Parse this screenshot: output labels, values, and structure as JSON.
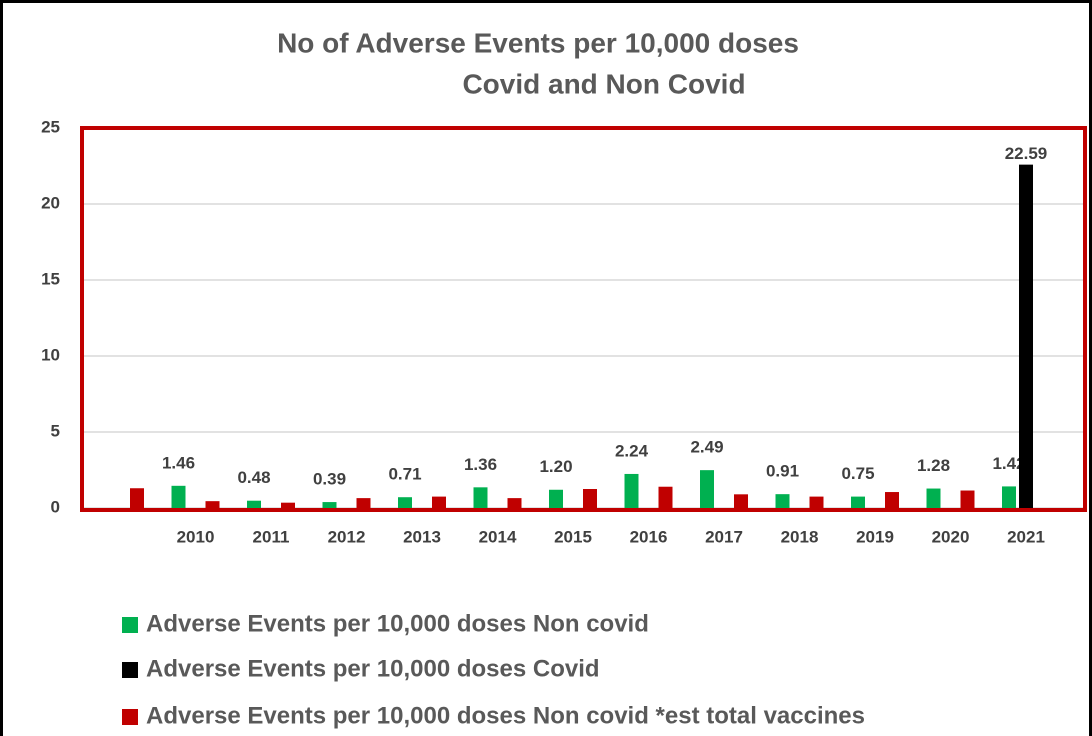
{
  "chart_data": {
    "type": "bar",
    "title": [
      "No of Adverse Events per 10,000 doses",
      "Covid and Non Covid"
    ],
    "categories": [
      null,
      "2010",
      "2011",
      "2012",
      "2013",
      "2014",
      "2015",
      "2016",
      "2017",
      "2018",
      "2019",
      "2020",
      "2021"
    ],
    "series": [
      {
        "name": "Adverse Events per 10,000 doses Non covid",
        "color": "#00b050",
        "values": [
          null,
          1.46,
          0.48,
          0.39,
          0.71,
          1.36,
          1.2,
          2.24,
          2.49,
          0.91,
          0.75,
          1.28,
          1.42
        ],
        "value_labels": [
          null,
          "1.46",
          "0.48",
          "0.39",
          "0.71",
          "1.36",
          "1.20",
          "2.24",
          "2.49",
          "0.91",
          "0.75",
          "1.28",
          "1.42"
        ]
      },
      {
        "name": "Adverse Events per 10,000 doses Covid",
        "color": "#000000",
        "values": [
          null,
          null,
          null,
          null,
          null,
          null,
          null,
          null,
          null,
          null,
          null,
          null,
          22.59
        ],
        "value_labels": [
          null,
          null,
          null,
          null,
          null,
          null,
          null,
          null,
          null,
          null,
          null,
          null,
          "22.59"
        ]
      },
      {
        "name": "Adverse Events per 10,000 doses Non covid *est total vaccines",
        "color": "#c00000",
        "values": [
          1.3,
          0.45,
          0.35,
          0.65,
          0.75,
          0.65,
          1.25,
          1.4,
          0.9,
          0.75,
          1.05,
          1.15,
          null
        ]
      }
    ],
    "ylim": [
      0,
      25
    ],
    "yticks": [
      0,
      5,
      10,
      15,
      20,
      25
    ],
    "grid": true,
    "legend": "bottom"
  }
}
